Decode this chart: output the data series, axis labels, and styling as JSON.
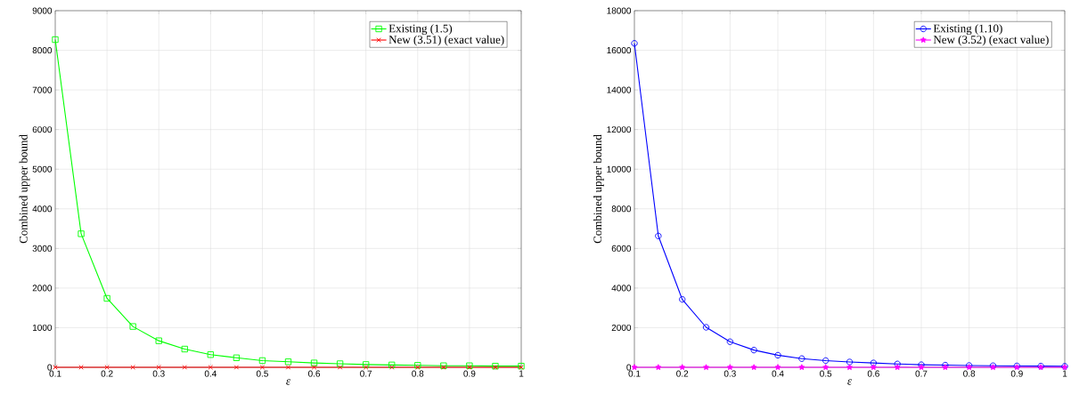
{
  "chart_data": [
    {
      "type": "line",
      "xlabel": "ε",
      "ylabel": "Combined upper bound",
      "x": [
        0.1,
        0.15,
        0.2,
        0.25,
        0.3,
        0.35,
        0.4,
        0.45,
        0.5,
        0.55,
        0.6,
        0.65,
        0.7,
        0.75,
        0.8,
        0.85,
        0.9,
        0.95,
        1
      ],
      "series": [
        {
          "name": "Existing (1.5)",
          "color": "#00ff00",
          "marker": "square",
          "values": [
            8270,
            3370,
            1740,
            1030,
            670,
            460,
            320,
            240,
            170,
            140,
            110,
            90,
            70,
            60,
            50,
            40,
            40,
            30,
            30
          ]
        },
        {
          "name": "New (3.51) (exact value)",
          "color": "#ff0000",
          "marker": "cross",
          "values": [
            0,
            0,
            0,
            0,
            0,
            0,
            0,
            0,
            0,
            0,
            0,
            0,
            0,
            0,
            0,
            0,
            0,
            0,
            0
          ]
        }
      ],
      "xlim": [
        0.1,
        1
      ],
      "ylim": [
        0,
        9000
      ],
      "xticks": [
        0.1,
        0.2,
        0.3,
        0.4,
        0.5,
        0.6,
        0.7,
        0.8,
        0.9,
        1
      ],
      "yticks": [
        0,
        1000,
        2000,
        3000,
        4000,
        5000,
        6000,
        7000,
        8000,
        9000
      ],
      "grid": true,
      "legend": "top right",
      "line_style": "solid"
    },
    {
      "type": "line",
      "xlabel": "ε",
      "ylabel": "Combined upper bound",
      "x": [
        0.1,
        0.15,
        0.2,
        0.25,
        0.3,
        0.35,
        0.4,
        0.45,
        0.5,
        0.55,
        0.6,
        0.65,
        0.7,
        0.75,
        0.8,
        0.85,
        0.9,
        0.95,
        1
      ],
      "series": [
        {
          "name": "Existing (1.10)",
          "color": "#0000ff",
          "marker": "circle",
          "values": [
            16350,
            6630,
            3430,
            2020,
            1290,
            870,
            610,
            440,
            340,
            270,
            220,
            170,
            130,
            110,
            90,
            80,
            70,
            60,
            50
          ]
        },
        {
          "name": "New (3.52) (exact value)",
          "color": "#ff00ff",
          "marker": "star",
          "values": [
            0,
            0,
            0,
            0,
            0,
            0,
            0,
            0,
            0,
            0,
            0,
            0,
            0,
            0,
            0,
            0,
            0,
            0,
            0
          ]
        }
      ],
      "xlim": [
        0.1,
        1
      ],
      "ylim": [
        0,
        18000
      ],
      "xticks": [
        0.1,
        0.2,
        0.3,
        0.4,
        0.5,
        0.6,
        0.7,
        0.8,
        0.9,
        1
      ],
      "yticks": [
        0,
        2000,
        4000,
        6000,
        8000,
        10000,
        12000,
        14000,
        16000,
        18000
      ],
      "grid": true,
      "legend": "top right",
      "line_style": "solid"
    }
  ]
}
